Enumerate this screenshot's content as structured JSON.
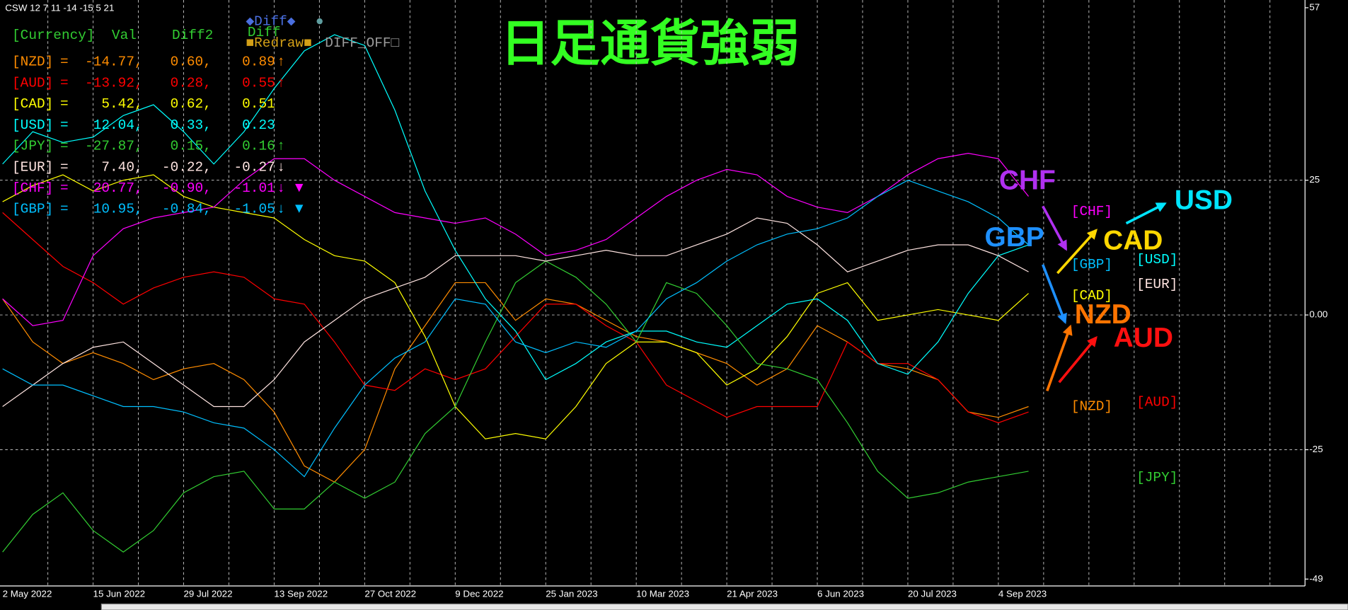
{
  "chart_data": {
    "type": "line",
    "header": "CSW 12 7 11 -14 -15 5 21",
    "title": "日足通貨強弱",
    "title_color": "#33ff22",
    "controls": [
      {
        "text": "◆Diff◆",
        "color": "#4a6fe0"
      },
      {
        "text": "●",
        "color": "#5f9ea0"
      },
      {
        "text": "■Redraw■",
        "color": "#d4a017"
      },
      {
        "text": "DIFF_OFF□",
        "color": "#9a9a9a"
      }
    ],
    "table": {
      "color": "#32cd32",
      "header": [
        "[Currency]",
        "Val",
        "Diff2",
        "Diff"
      ],
      "rows": [
        {
          "color": "#ff8c00",
          "cells": [
            "[NZD]",
            "=",
            "-14.77,",
            "0.60,",
            "0.89",
            "↑"
          ]
        },
        {
          "color": "#ff0000",
          "cells": [
            "[AUD]",
            "=",
            "-13.92,",
            "0.28,",
            "0.55",
            "↑"
          ]
        },
        {
          "color": "#ffff00",
          "cells": [
            "[CAD]",
            "=",
            "5.42,",
            "0.62,",
            "0.51"
          ]
        },
        {
          "color": "#00ffff",
          "cells": [
            "[USD]",
            "=",
            "12.04,",
            "0.33,",
            "0.23"
          ]
        },
        {
          "color": "#32cd32",
          "cells": [
            "[JPY]",
            "=",
            "-27.87,",
            "0.15,",
            "0.16",
            "↑"
          ]
        },
        {
          "color": "#ffe4e1",
          "cells": [
            "[EUR]",
            "=",
            "7.40,",
            "-0.22,",
            "-0.27",
            "↓"
          ]
        },
        {
          "color": "#ff00ff",
          "cells": [
            "[CHF]",
            "=",
            "20.77,",
            "-0.90,",
            "-1.01",
            "↓"
          ],
          "marker": {
            "text": "▼",
            "color": "#ff00ff"
          }
        },
        {
          "color": "#00bfff",
          "cells": [
            "[GBP]",
            "=",
            "10.95,",
            "-0.84,",
            "-1.05",
            "↓"
          ],
          "marker": {
            "text": "▼",
            "color": "#00bfff"
          }
        }
      ]
    },
    "categories": [
      "2 May 2022",
      null,
      null,
      "15 Jun 2022",
      null,
      null,
      "29 Jul 2022",
      null,
      null,
      "13 Sep 2022",
      null,
      null,
      "27 Oct 2022",
      null,
      null,
      "9 Dec 2022",
      null,
      null,
      "25 Jan 2023",
      null,
      null,
      "10 Mar 2023",
      null,
      null,
      "21 Apr 2023",
      null,
      null,
      "6 Jun 2023",
      null,
      null,
      "20 Jul 2023",
      null,
      null,
      "4 Sep 2023",
      null
    ],
    "series": [
      {
        "name": "[NZD]",
        "color": "#ff8c00",
        "values": [
          3,
          -5,
          -9,
          -7,
          -9,
          -12,
          -10,
          -9,
          -12,
          -18,
          -28,
          -31,
          -25,
          -10,
          -2,
          6,
          6,
          -1,
          3,
          2,
          -1,
          -4,
          -5,
          -7,
          -9,
          -13,
          -10,
          -2,
          -5,
          -9,
          -10,
          -12,
          -18,
          -19,
          -17
        ]
      },
      {
        "name": "[AUD]",
        "color": "#ff0000",
        "values": [
          19,
          14,
          9,
          6,
          2,
          5,
          7,
          8,
          7,
          3,
          2,
          -5,
          -13,
          -14,
          -10,
          -12,
          -10,
          -4,
          2,
          2,
          -2,
          -5,
          -13,
          -16,
          -19,
          -17,
          -17,
          -17,
          -5,
          -9,
          -9,
          -12,
          -18,
          -20,
          -18
        ]
      },
      {
        "name": "[CAD]",
        "color": "#ffff00",
        "values": [
          21,
          24,
          26,
          23,
          25,
          26,
          22,
          20,
          19,
          18,
          14,
          11,
          10,
          6,
          -4,
          -17,
          -23,
          -22,
          -23,
          -17,
          -9,
          -5,
          -5,
          -7,
          -13,
          -10,
          -4,
          4,
          6,
          -1,
          0,
          1,
          0,
          -1,
          4
        ]
      },
      {
        "name": "[USD]",
        "color": "#00ffff",
        "values": [
          28,
          34,
          32,
          33,
          37,
          39,
          34,
          28,
          34,
          42,
          49,
          52,
          50,
          38,
          23,
          12,
          3,
          -3,
          -12,
          -9,
          -5,
          -3,
          -3,
          -5,
          -6,
          -2,
          2,
          3,
          -1,
          -9,
          -11,
          -5,
          4,
          11,
          13
        ]
      },
      {
        "name": "[JPY]",
        "color": "#32cd32",
        "values": [
          -44,
          -37,
          -33,
          -40,
          -44,
          -40,
          -33,
          -30,
          -29,
          -36,
          -36,
          -31,
          -34,
          -31,
          -22,
          -17,
          -5,
          6,
          10,
          7,
          2,
          -5,
          6,
          4,
          -2,
          -9,
          -10,
          -12,
          -20,
          -29,
          -34,
          -33,
          -31,
          -30,
          -29
        ]
      },
      {
        "name": "[EUR]",
        "color": "#ffe4e1",
        "values": [
          -17,
          -13,
          -9,
          -6,
          -5,
          -9,
          -13,
          -17,
          -17,
          -12,
          -5,
          -1,
          3,
          5,
          7,
          11,
          11,
          11,
          10,
          11,
          12,
          11,
          11,
          13,
          15,
          18,
          17,
          13,
          8,
          10,
          12,
          13,
          13,
          11,
          8
        ]
      },
      {
        "name": "[CHF]",
        "color": "#ff00ff",
        "values": [
          3,
          -2,
          -1,
          11,
          16,
          18,
          19,
          20,
          25,
          29,
          29,
          25,
          22,
          19,
          18,
          17,
          18,
          15,
          11,
          12,
          14,
          18,
          22,
          25,
          27,
          26,
          22,
          20,
          19,
          22,
          26,
          29,
          30,
          29,
          22
        ]
      },
      {
        "name": "[GBP]",
        "color": "#00bfff",
        "values": [
          -10,
          -13,
          -13,
          -15,
          -17,
          -17,
          -18,
          -20,
          -21,
          -25,
          -30,
          -21,
          -13,
          -8,
          -5,
          3,
          2,
          -5,
          -7,
          -5,
          -6,
          -3,
          3,
          6,
          10,
          13,
          15,
          16,
          18,
          22,
          25,
          23,
          21,
          18,
          13
        ]
      }
    ],
    "ylim": [
      -49,
      57
    ],
    "yticks": [
      57,
      25,
      {
        "value": 0,
        "label": "0.00"
      },
      -25,
      -49
    ],
    "grid": true,
    "annotations": [
      {
        "text": "CHF",
        "color": "#b030f0"
      },
      {
        "text": "GBP",
        "color": "#1e90ff"
      },
      {
        "text": "USD",
        "color": "#00e5ff"
      },
      {
        "text": "CAD",
        "color": "#ffd700"
      },
      {
        "text": "NZD",
        "color": "#ff7400"
      },
      {
        "text": "AUD",
        "color": "#ff1010"
      }
    ]
  }
}
